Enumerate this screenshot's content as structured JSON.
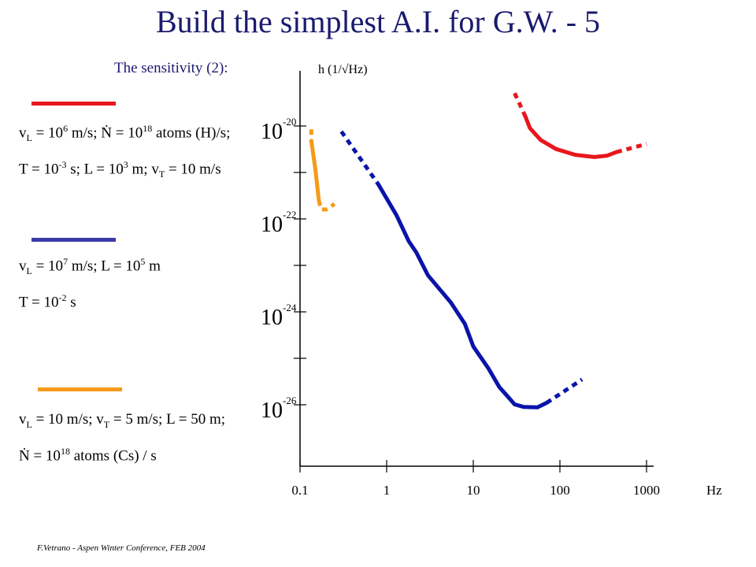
{
  "slide": {
    "title": "Build the simplest A.I. for G.W. - 5",
    "subtitle": "The sensitivity (2):",
    "footer": "F.Vetrano - Aspen Winter Conference, FEB 2004",
    "legend": [
      {
        "color": "#e8161c",
        "lines": [
          "v_L = 10^6 m/s; Ṅ = 10^18 atoms (H)/s;",
          "T = 10^-3 s; L = 10^3 m; v_T = 10 m/s"
        ]
      },
      {
        "color": "#3b3ba6",
        "lines": [
          "v_L = 10^7 m/s; L = 10^5 m",
          "T = 10^-2 s"
        ]
      },
      {
        "color": "#f59a1a",
        "lines": [
          "v_L = 10 m/s; v_T = 5 m/s; L = 50 m;",
          "Ṅ = 10^18 atoms (Cs) / s"
        ]
      }
    ]
  },
  "chart_data": {
    "type": "line",
    "xlabel": "Hz",
    "ylabel": "h (1/√Hz)",
    "x_scale": "log",
    "y_scale": "log",
    "xlim": [
      0.1,
      1000
    ],
    "ylim": [
      1e-27,
      1e-19
    ],
    "x_ticks": [
      0.1,
      1,
      10,
      100,
      1000
    ],
    "x_tick_labels": [
      "0.1",
      "1",
      "10",
      "100",
      "1000"
    ],
    "y_ticks": [
      1e-20,
      1e-22,
      1e-24,
      1e-26
    ],
    "y_tick_labels": [
      {
        "base": "10",
        "exp": "-20"
      },
      {
        "base": "10",
        "exp": "-22"
      },
      {
        "base": "10",
        "exp": "-24"
      },
      {
        "base": "10",
        "exp": "-26"
      }
    ],
    "series": [
      {
        "color": "#e8161c",
        "dotted_before": [
          [
            30,
            5.1e-20
          ],
          [
            40,
            1.6e-20
          ]
        ],
        "solid": [
          [
            40,
            1.6e-20
          ],
          [
            45,
            9e-21
          ],
          [
            60,
            5e-21
          ],
          [
            90,
            3.2e-21
          ],
          [
            150,
            2.4e-21
          ],
          [
            250,
            2.15e-21
          ],
          [
            350,
            2.3e-21
          ],
          [
            450,
            2.75e-21
          ]
        ],
        "dotted_after": [
          [
            450,
            2.75e-21
          ],
          [
            1000,
            4.1e-21
          ]
        ]
      },
      {
        "color": "#0a14a8",
        "dotted_before": [
          [
            0.3,
            7.6e-21
          ],
          [
            0.8,
            5.6e-22
          ]
        ],
        "solid": [
          [
            0.8,
            5.6e-22
          ],
          [
            1.3,
            1.2e-22
          ],
          [
            1.8,
            3.3e-23
          ],
          [
            2.2,
            1.9e-23
          ],
          [
            3,
            6.1e-24
          ],
          [
            5.5,
            1.6e-24
          ],
          [
            8,
            5.5e-25
          ],
          [
            10,
            1.8e-25
          ],
          [
            12,
            1.1e-25
          ],
          [
            15,
            6e-26
          ],
          [
            20,
            2.4e-26
          ],
          [
            25,
            1.5e-26
          ],
          [
            30,
            1.02e-26
          ],
          [
            38,
            9e-27
          ],
          [
            55,
            8.8e-27
          ],
          [
            70,
            1.1e-26
          ]
        ],
        "dotted_after": [
          [
            70,
            1.1e-26
          ],
          [
            180,
            3.5e-26
          ]
        ]
      },
      {
        "color": "#f59a1a",
        "dotted_before": [
          [
            0.135,
            8.5e-21
          ],
          [
            0.135,
            4.8e-21
          ]
        ],
        "solid": [
          [
            0.135,
            4.8e-21
          ],
          [
            0.15,
            1.2e-21
          ],
          [
            0.165,
            2.5e-22
          ]
        ],
        "dotted_after": [
          [
            0.165,
            2.5e-22
          ],
          [
            0.175,
            1.6e-22
          ],
          [
            0.2,
            1.6e-22
          ],
          [
            0.25,
            2.1e-22
          ]
        ]
      }
    ]
  }
}
